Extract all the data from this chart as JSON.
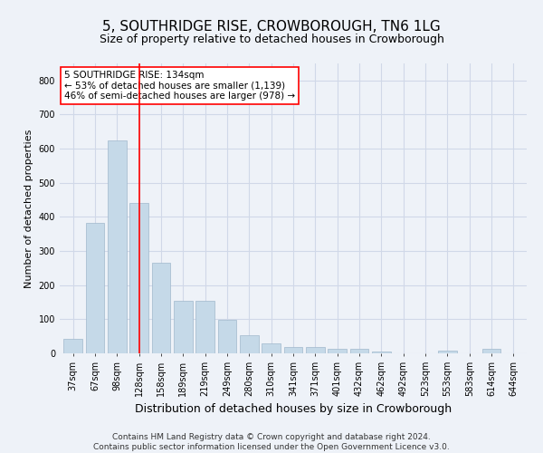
{
  "title": "5, SOUTHRIDGE RISE, CROWBOROUGH, TN6 1LG",
  "subtitle": "Size of property relative to detached houses in Crowborough",
  "xlabel": "Distribution of detached houses by size in Crowborough",
  "ylabel": "Number of detached properties",
  "categories": [
    "37sqm",
    "67sqm",
    "98sqm",
    "128sqm",
    "158sqm",
    "189sqm",
    "219sqm",
    "249sqm",
    "280sqm",
    "310sqm",
    "341sqm",
    "371sqm",
    "401sqm",
    "432sqm",
    "462sqm",
    "492sqm",
    "523sqm",
    "553sqm",
    "583sqm",
    "614sqm",
    "644sqm"
  ],
  "values": [
    42,
    383,
    625,
    440,
    265,
    155,
    155,
    97,
    52,
    30,
    18,
    18,
    14,
    14,
    5,
    0,
    0,
    9,
    0,
    14,
    0
  ],
  "bar_color": "#c5d9e8",
  "bar_edgecolor": "#a0b8cc",
  "grid_color": "#d0d8e8",
  "bg_color": "#eef2f8",
  "vline_x": 3,
  "vline_color": "red",
  "annotation_text": "5 SOUTHRIDGE RISE: 134sqm\n← 53% of detached houses are smaller (1,139)\n46% of semi-detached houses are larger (978) →",
  "annotation_box_color": "white",
  "annotation_box_edgecolor": "red",
  "footer": "Contains HM Land Registry data © Crown copyright and database right 2024.\nContains public sector information licensed under the Open Government Licence v3.0.",
  "ylim": [
    0,
    850
  ],
  "title_fontsize": 11,
  "subtitle_fontsize": 9,
  "xlabel_fontsize": 9,
  "ylabel_fontsize": 8,
  "tick_fontsize": 7,
  "footer_fontsize": 6.5,
  "annotation_fontsize": 7.5
}
